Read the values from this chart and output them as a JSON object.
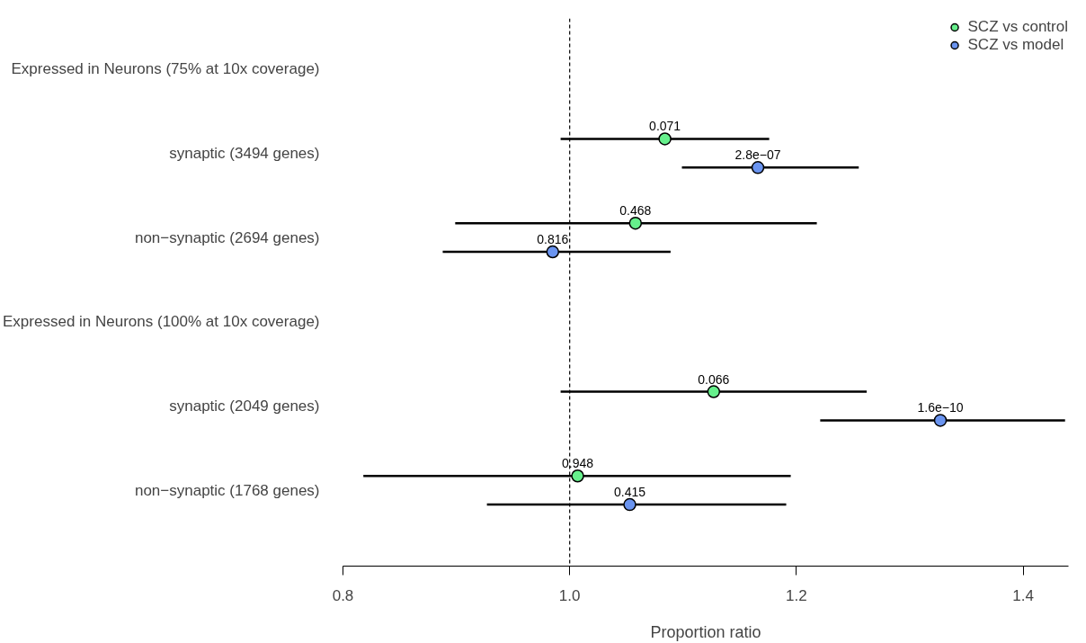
{
  "chart_data": {
    "type": "scatter",
    "orientation": "horizontal",
    "xlabel": "Proportion ratio",
    "categories": [
      "Expressed in Neurons (75% at 10x coverage)",
      "synaptic (3494 genes)",
      "non−synaptic (2694 genes)",
      "Expressed in Neurons (100% at 10x coverage)",
      "synaptic (2049 genes)",
      "non−synaptic (1768 genes)"
    ],
    "series": [
      {
        "name": "SCZ vs control",
        "color": "#66f08c",
        "values": [
          null,
          1.084,
          1.058,
          null,
          1.127,
          1.007
        ],
        "errors": [
          null,
          [
            0.992,
            1.176
          ],
          [
            0.899,
            1.218
          ],
          null,
          [
            0.992,
            1.262
          ],
          [
            0.818,
            1.195
          ]
        ]
      },
      {
        "name": "SCZ vs model",
        "color": "#6a94f0",
        "values": [
          null,
          1.166,
          0.985,
          null,
          1.327,
          1.053
        ],
        "errors": [
          null,
          [
            1.099,
            1.255
          ],
          [
            0.888,
            1.089
          ],
          null,
          [
            1.221,
            1.437
          ],
          [
            0.927,
            1.191
          ]
        ]
      }
    ],
    "annotations": [
      "0.071",
      "2.8e−07",
      "0.468",
      "0.816",
      "0.066",
      "1.6e−10",
      "0.948",
      "0.415"
    ],
    "xlim": [
      0.8,
      1.44
    ],
    "xticks": [
      0.8,
      {
        "value": 1,
        "label": "1.0"
      },
      1.2,
      1.4
    ],
    "ref_lines": [
      {
        "axis": "x",
        "value": 1,
        "line_style": "dashed",
        "color": "#000000"
      }
    ],
    "marker": "circle",
    "grid": false,
    "legend": "top right"
  }
}
